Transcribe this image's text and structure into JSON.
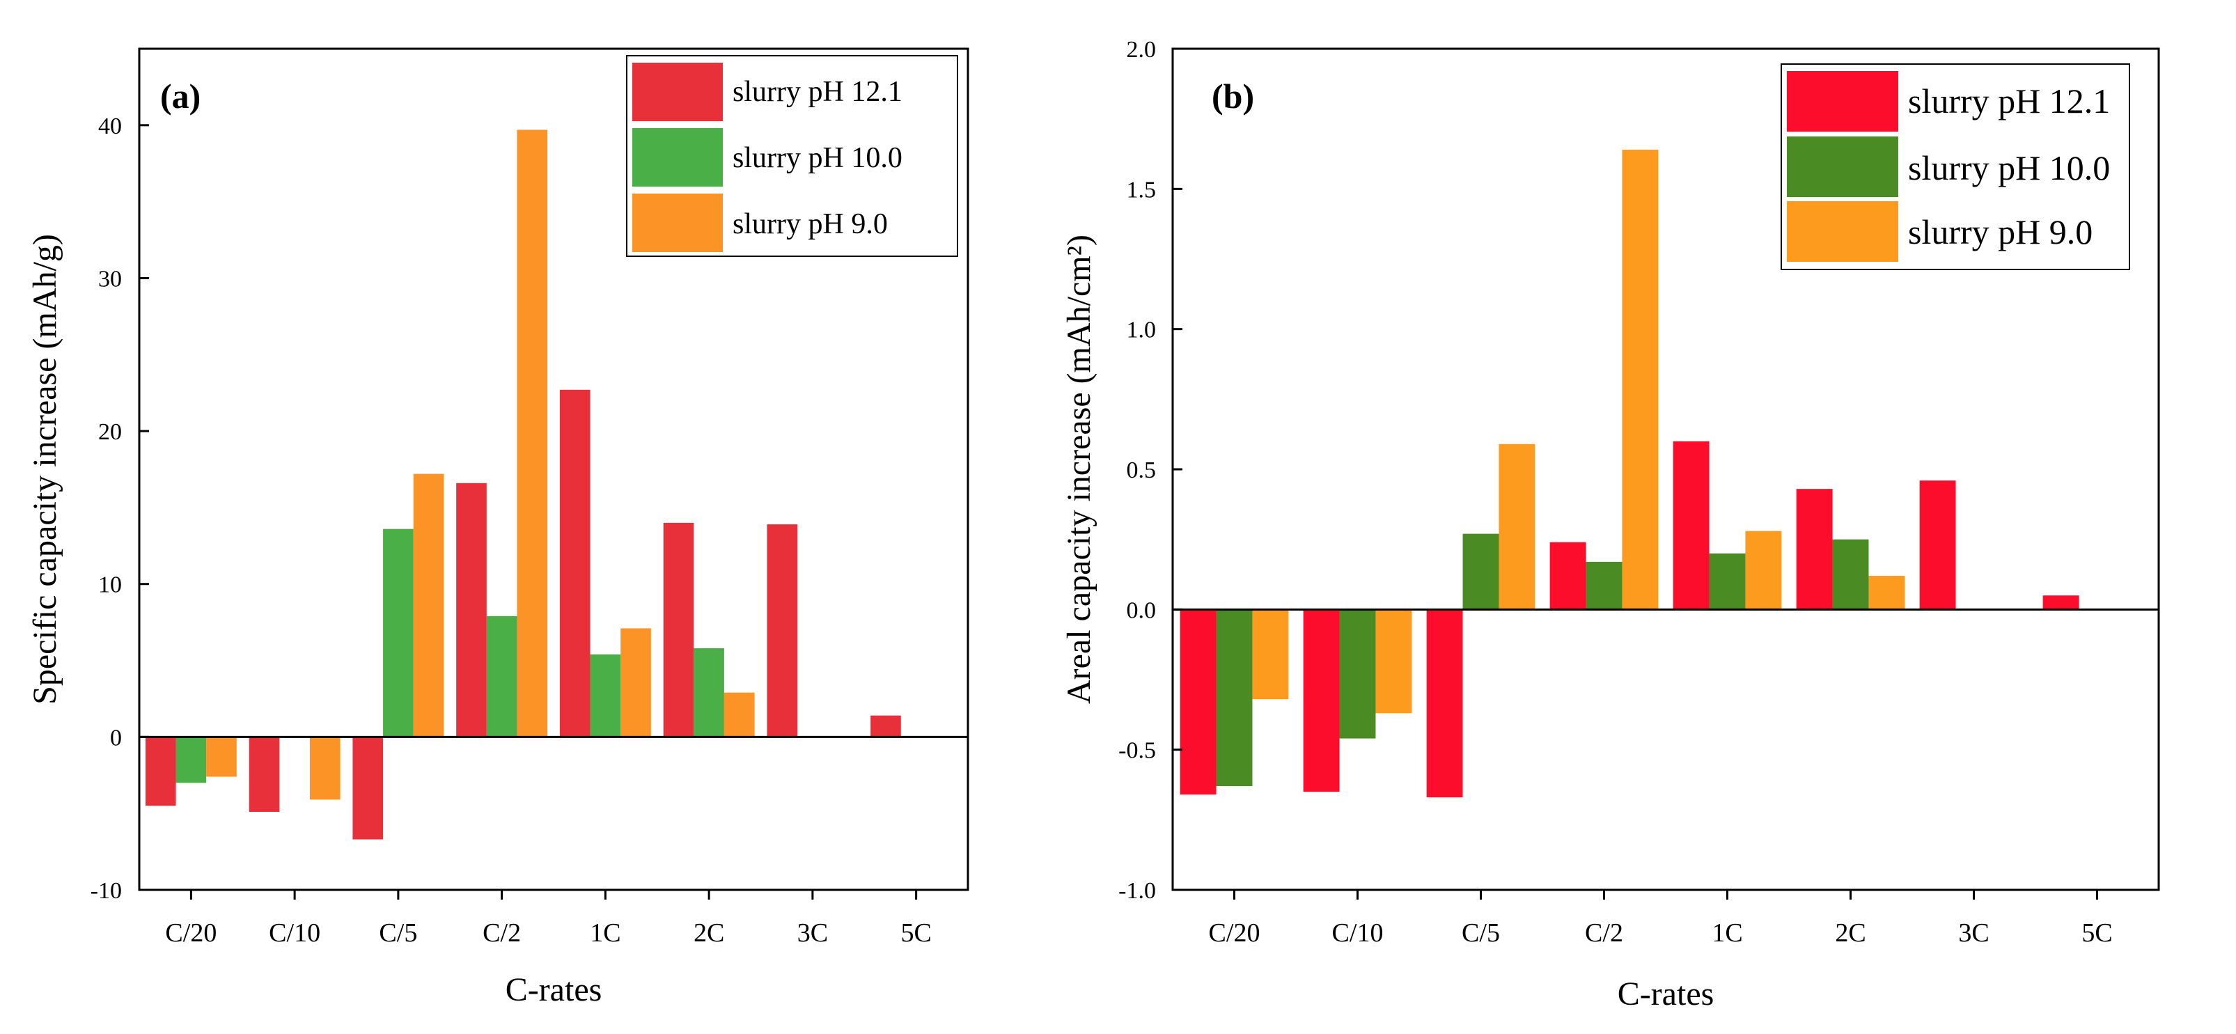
{
  "chart_data": [
    {
      "type": "bar",
      "panel_label": "(a)",
      "categories": [
        "C/20",
        "C/10",
        "C/5",
        "C/2",
        "1C",
        "2C",
        "3C",
        "5C"
      ],
      "series": [
        {
          "name": "slurry pH 12.1",
          "color": "#E8303A",
          "values": [
            -4.5,
            -4.9,
            -6.7,
            16.6,
            22.7,
            14.0,
            13.9,
            1.4
          ]
        },
        {
          "name": "slurry pH 10.0",
          "color": "#4BAF47",
          "values": [
            -3.0,
            null,
            13.6,
            7.9,
            5.4,
            5.8,
            null,
            null
          ]
        },
        {
          "name": "slurry pH 9.0",
          "color": "#FB9327",
          "values": [
            -2.6,
            -4.1,
            17.2,
            39.7,
            7.1,
            2.9,
            null,
            null
          ]
        }
      ],
      "xlabel": "C-rates",
      "ylabel": "Specific capacity increase (mAh/g)",
      "ylim": [
        -10,
        45
      ],
      "yticks": [
        -10,
        0,
        10,
        20,
        30,
        40
      ],
      "ytick_labels": [
        "-10",
        "0",
        "10",
        "20",
        "30",
        "40"
      ],
      "legend_position": "top-right"
    },
    {
      "type": "bar",
      "panel_label": "(b)",
      "categories": [
        "C/20",
        "C/10",
        "C/5",
        "C/2",
        "1C",
        "2C",
        "3C",
        "5C"
      ],
      "series": [
        {
          "name": "slurry pH 12.1",
          "color": "#FC0D2C",
          "values": [
            -0.66,
            -0.65,
            -0.67,
            0.24,
            0.6,
            0.43,
            0.46,
            0.05
          ]
        },
        {
          "name": "slurry pH 10.0",
          "color": "#4A8C23",
          "values": [
            -0.63,
            -0.46,
            0.27,
            0.17,
            0.2,
            0.25,
            null,
            null
          ]
        },
        {
          "name": "slurry pH 9.0",
          "color": "#FC9B1E",
          "values": [
            -0.32,
            -0.37,
            0.59,
            1.64,
            0.28,
            0.12,
            null,
            null
          ]
        }
      ],
      "xlabel": "C-rates",
      "ylabel": "Areal capacity increase (mAh/cm²)",
      "ylim": [
        -1.0,
        2.0
      ],
      "yticks": [
        -1.0,
        -0.5,
        0.0,
        0.5,
        1.0,
        1.5,
        2.0
      ],
      "ytick_labels": [
        "-1.0",
        "-0.5",
        "0.0",
        "0.5",
        "1.0",
        "1.5",
        "2.0"
      ],
      "legend_position": "top-right"
    }
  ]
}
